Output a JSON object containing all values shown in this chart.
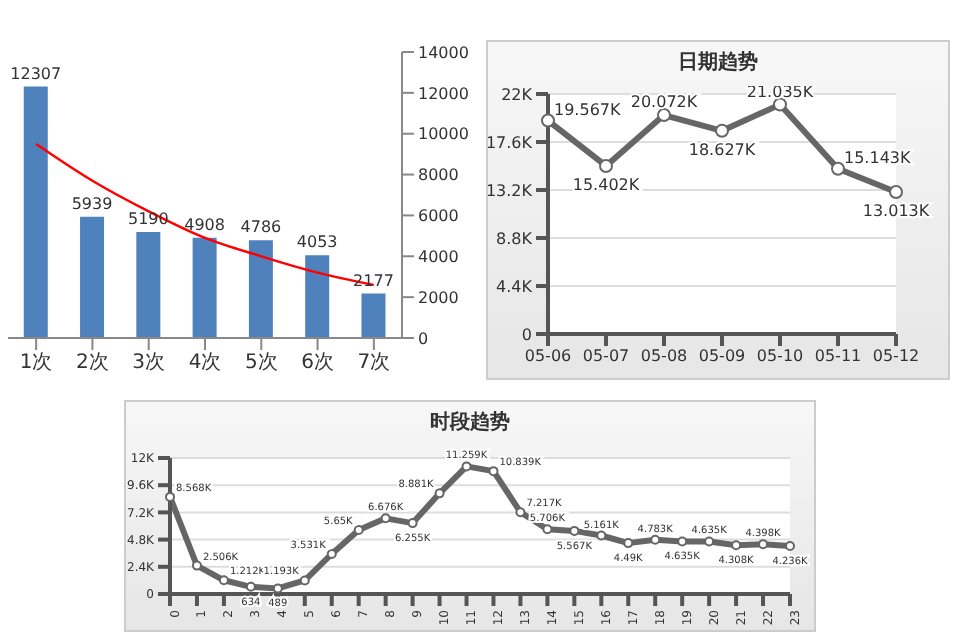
{
  "chart_data": [
    {
      "type": "bar",
      "categories": [
        "1次",
        "2次",
        "3次",
        "4次",
        "5次",
        "6次",
        "7次"
      ],
      "series": [
        {
          "color": "#4f81bd",
          "values": [
            12307,
            5939,
            5190,
            4908,
            4786,
            4053,
            2177
          ],
          "value_labels": [
            "12307",
            "5939",
            "5190",
            "4908",
            "4786",
            "4053",
            "2177"
          ]
        },
        {
          "type": "line",
          "color": "#ff0000",
          "values": [
            9500,
            7700,
            6200,
            4900,
            4000,
            3200,
            2600
          ]
        }
      ],
      "ylim": [
        0,
        14000
      ],
      "yticks": [
        0,
        2000,
        4000,
        6000,
        8000,
        10000,
        12000,
        14000
      ],
      "marker": "none",
      "grid": false,
      "legend": false
    },
    {
      "type": "line",
      "title": "日期趋势",
      "categories": [
        "05-06",
        "05-07",
        "05-08",
        "05-09",
        "05-10",
        "05-11",
        "05-12"
      ],
      "series": [
        {
          "color": "#666666",
          "values": [
            19567,
            15402,
            20072,
            18627,
            21035,
            15143,
            13013
          ],
          "value_labels": [
            "19.567K",
            "15.402K",
            "20.072K",
            "18.627K",
            "21.035K",
            "15.143K",
            "13.013K"
          ]
        }
      ],
      "ylim": [
        0,
        22000
      ],
      "yticks": [
        0,
        {
          "value": 4400,
          "label": "4.4K"
        },
        {
          "value": 8800,
          "label": "8.8K"
        },
        {
          "value": 13200,
          "label": "13.2K"
        },
        {
          "value": 17600,
          "label": "17.6K"
        },
        {
          "value": 22000,
          "label": "22K"
        }
      ],
      "marker": "circle",
      "grid": "y",
      "legend": false
    },
    {
      "type": "line",
      "title": "时段趋势",
      "categories": [
        "0",
        "1",
        "2",
        "3",
        "4",
        "5",
        "6",
        "7",
        "8",
        "9",
        "10",
        "11",
        "12",
        "13",
        "14",
        "15",
        "16",
        "17",
        "18",
        "19",
        "20",
        "21",
        "22",
        "23"
      ],
      "series": [
        {
          "color": "#666666",
          "values": [
            8568,
            2506,
            1212,
            634,
            489,
            1193,
            3531,
            5650,
            6676,
            6255,
            8881,
            11259,
            10839,
            7217,
            5706,
            5567,
            5161,
            4490,
            4783,
            4635,
            4635,
            4308,
            4398,
            4236
          ],
          "value_labels": [
            "8.568K",
            "2.506K",
            "1.212K",
            "634",
            "489",
            "1.193K",
            "3.531K",
            "5.65K",
            "6.676K",
            "6.255K",
            "8.881K",
            "11.259K",
            "10.839K",
            "7.217K",
            "5.706K",
            "5.567K",
            "5.161K",
            "4.49K",
            "4.783K",
            "4.635K",
            "4.635K",
            "4.308K",
            "4.398K",
            "4.236K"
          ]
        }
      ],
      "ylim": [
        0,
        12000
      ],
      "yticks": [
        0,
        {
          "value": 2400,
          "label": "2.4K"
        },
        {
          "value": 4800,
          "label": "4.8K"
        },
        {
          "value": 7200,
          "label": "7.2K"
        },
        {
          "value": 9600,
          "label": "9.6K"
        },
        {
          "value": 12000,
          "label": "12K"
        }
      ],
      "marker": "circle",
      "grid": "y",
      "legend": false
    }
  ]
}
